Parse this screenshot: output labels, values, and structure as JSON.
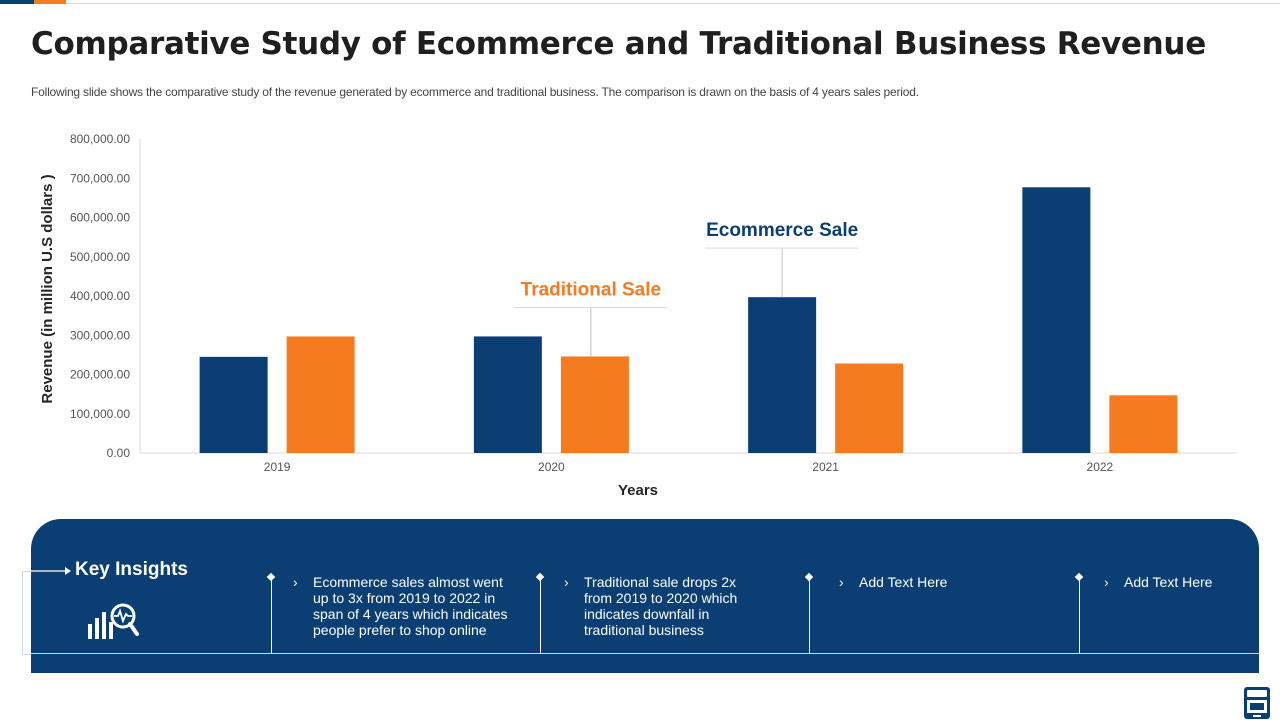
{
  "slide": {
    "title": "Comparative Study of Ecommerce and Traditional Business Revenue",
    "subtitle": "Following slide shows the comparative study of the revenue generated by ecommerce and traditional business. The comparison is drawn on the basis of 4 years sales period."
  },
  "colors": {
    "ecommerce": "#0b3f74",
    "traditional": "#f47b20",
    "panel": "#0b3f74"
  },
  "chart_data": {
    "type": "bar",
    "categories": [
      "2019",
      "2020",
      "2021",
      "2022"
    ],
    "series": [
      {
        "name": "Ecommerce Sale",
        "values": [
          245000,
          297000,
          397000,
          677000
        ],
        "color": "#0b3f74"
      },
      {
        "name": "Traditional Sale",
        "values": [
          297000,
          246000,
          228000,
          147000
        ],
        "color": "#f47b20"
      }
    ],
    "xlabel": "Years",
    "ylabel": "Revenue (in million U.S dollars )",
    "ylim": [
      0,
      800000
    ],
    "yticks": [
      0,
      100000,
      200000,
      300000,
      400000,
      500000,
      600000,
      700000,
      800000
    ],
    "ytick_labels": [
      "0.00",
      "100,000.00",
      "200,000.00",
      "300,000.00",
      "400,000.00",
      "500,000.00",
      "600,000.00",
      "700,000.00",
      "800,000.00"
    ],
    "grid": false,
    "callouts": [
      {
        "label": "Ecommerce Sale",
        "series": 0,
        "category": 2
      },
      {
        "label": "Traditional Sale",
        "series": 1,
        "category": 1
      }
    ]
  },
  "insights": {
    "title": "Key Insights",
    "items": [
      {
        "text": "Ecommerce sales almost went\nup to 3x from 2019 to 2022 in\nspan of 4 years which indicates\npeople prefer  to shop online"
      },
      {
        "text": "Traditional  sale drops 2x\nfrom 2019 to 2020 which\nindicates downfall in\ntraditional business"
      },
      {
        "text": "Add Text Here"
      },
      {
        "text": "Add Text Here"
      }
    ],
    "bullet": "›",
    "icon": "chart-magnifier-icon"
  }
}
